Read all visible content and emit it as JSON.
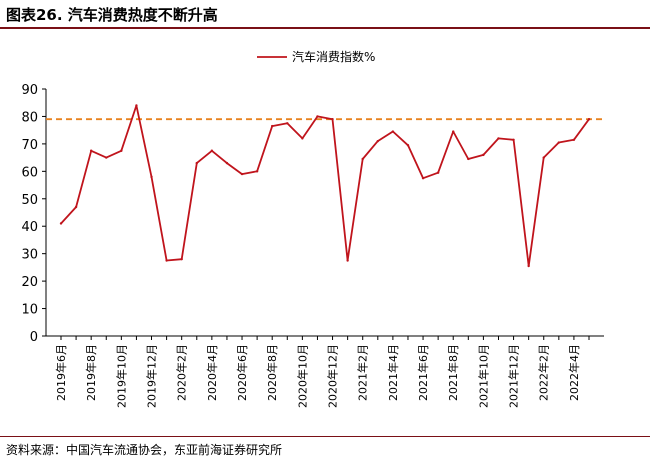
{
  "figure_title": "图表26. 汽车消费热度不断升高",
  "source_note": "资料来源：中国汽车流通协会，东亚前海证券研究所",
  "colors": {
    "series": "#c0141c",
    "reference_line": "#e8821e",
    "rule": "#7a1016"
  },
  "chart_data": {
    "type": "line",
    "title": "",
    "xlabel": "",
    "ylabel": "",
    "ylim": [
      0,
      90
    ],
    "yticks": [
      "0",
      "10",
      "20",
      "30",
      "40",
      "50",
      "60",
      "70",
      "80",
      "90"
    ],
    "grid": false,
    "legend_position": "top-center",
    "x": [
      "2019年6月",
      "2019年7月",
      "2019年8月",
      "2019年9月",
      "2019年10月",
      "2019年11月",
      "2019年12月",
      "2020年1月",
      "2020年2月",
      "2020年3月",
      "2020年4月",
      "2020年5月",
      "2020年6月",
      "2020年7月",
      "2020年8月",
      "2020年9月",
      "2020年10月",
      "2020年11月",
      "2020年12月",
      "2021年1月",
      "2021年2月",
      "2021年3月",
      "2021年4月",
      "2021年5月",
      "2021年6月",
      "2021年7月",
      "2021年8月",
      "2021年9月",
      "2021年10月",
      "2021年11月",
      "2021年12月",
      "2022年1月",
      "2022年2月",
      "2022年3月",
      "2022年4月",
      "2022年5月"
    ],
    "tick_labels": [
      "2019年6月",
      "2019年8月",
      "2019年10月",
      "2019年12月",
      "2020年2月",
      "2020年4月",
      "2020年6月",
      "2020年8月",
      "2020年10月",
      "2020年12月",
      "2021年2月",
      "2021年4月",
      "2021年6月",
      "2021年8月",
      "2021年10月",
      "2021年12月",
      "2022年2月",
      "2022年4月"
    ],
    "series": [
      {
        "name": "汽车消费指数%",
        "values": [
          41,
          47,
          67.5,
          65,
          67.5,
          84,
          58,
          27.5,
          28,
          63,
          67.5,
          63,
          59,
          60,
          76.5,
          77.5,
          72,
          80,
          79,
          27.5,
          64.5,
          71,
          74.5,
          69.5,
          57.5,
          59.5,
          74.5,
          64.5,
          66,
          72,
          71.5,
          25.5,
          65,
          70.5,
          71.5,
          79
        ]
      }
    ],
    "reference_line": {
      "y": 79
    }
  }
}
